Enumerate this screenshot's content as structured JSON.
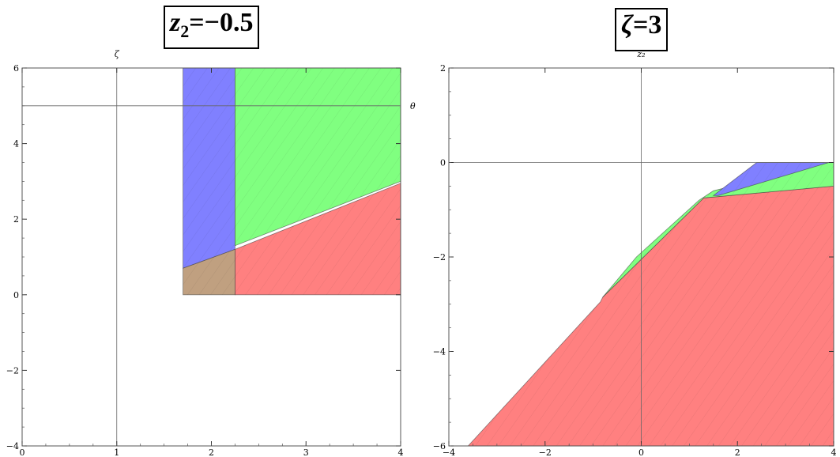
{
  "chart_data": [
    {
      "type": "area",
      "title_var": "z",
      "title_sub": "2",
      "title_rest": "=−0.5",
      "axis_name_vertical": "ζ",
      "axis_name_horizontal": "θ",
      "xlim": [
        0,
        4
      ],
      "ylim": [
        -4,
        6
      ],
      "axis_cross": {
        "x": 1,
        "y": 5
      },
      "x_ticks": [
        {
          "v": 0,
          "t": "0"
        },
        {
          "v": 1,
          "t": "1"
        },
        {
          "v": 2,
          "t": "2"
        },
        {
          "v": 3,
          "t": "3"
        },
        {
          "v": 4,
          "t": "4"
        }
      ],
      "y_ticks": [
        {
          "v": -4,
          "t": "−4"
        },
        {
          "v": -2,
          "t": "−2"
        },
        {
          "v": 0,
          "t": "0"
        },
        {
          "v": 2,
          "t": "2"
        },
        {
          "v": 4,
          "t": "4"
        },
        {
          "v": 6,
          "t": "6"
        }
      ],
      "regions": [
        {
          "color": "#8080ff",
          "points": [
            [
              1.7,
              6
            ],
            [
              2.25,
              6
            ],
            [
              2.25,
              1.2
            ],
            [
              1.7,
              0.7
            ]
          ]
        },
        {
          "color": "#80ff80",
          "points": [
            [
              2.25,
              6
            ],
            [
              4,
              6
            ],
            [
              4,
              3
            ],
            [
              2.25,
              1.3
            ]
          ]
        },
        {
          "color": "#ff8080",
          "points": [
            [
              2.25,
              1.2
            ],
            [
              4,
              2.95
            ],
            [
              4,
              0
            ],
            [
              2.25,
              0
            ]
          ]
        },
        {
          "color": "#c0a080",
          "points": [
            [
              1.7,
              0.7
            ],
            [
              2.25,
              1.2
            ],
            [
              2.25,
              0
            ],
            [
              1.7,
              0
            ]
          ]
        }
      ]
    },
    {
      "type": "area",
      "title_var": "ζ",
      "title_sub": "",
      "title_rest": "=3",
      "axis_name_vertical": "z₂",
      "axis_name_horizontal": "",
      "xlim": [
        -4,
        4
      ],
      "ylim": [
        -6,
        2
      ],
      "axis_cross": {
        "x": 0,
        "y": 0
      },
      "x_ticks": [
        {
          "v": -4,
          "t": "−4"
        },
        {
          "v": -2,
          "t": "−2"
        },
        {
          "v": 0,
          "t": "0"
        },
        {
          "v": 2,
          "t": "2"
        },
        {
          "v": 4,
          "t": "4"
        }
      ],
      "y_ticks": [
        {
          "v": -6,
          "t": "−6"
        },
        {
          "v": -4,
          "t": "−4"
        },
        {
          "v": -2,
          "t": "−2"
        },
        {
          "v": 0,
          "t": "0"
        },
        {
          "v": 2,
          "t": "2"
        }
      ],
      "regions": [
        {
          "color": "#ff8080",
          "points": [
            [
              -3.6,
              -6
            ],
            [
              4,
              -6
            ],
            [
              4,
              -0.5
            ],
            [
              1.3,
              -0.75
            ],
            [
              -0.8,
              -2.85
            ],
            [
              -0.85,
              -2.95
            ]
          ]
        },
        {
          "color": "#80ff80",
          "points": [
            [
              -0.8,
              -2.85
            ],
            [
              1.3,
              -0.75
            ],
            [
              4,
              -0.5
            ],
            [
              4,
              0
            ],
            [
              3.9,
              0
            ],
            [
              1.5,
              -0.6
            ],
            [
              1.2,
              -0.8
            ],
            [
              -0.1,
              -2.0
            ],
            [
              -0.8,
              -2.85
            ]
          ]
        },
        {
          "color": "#8080ff",
          "points": [
            [
              1.5,
              -0.7
            ],
            [
              2.4,
              0
            ],
            [
              3.9,
              0
            ],
            [
              1.6,
              -0.7
            ]
          ]
        }
      ]
    }
  ]
}
